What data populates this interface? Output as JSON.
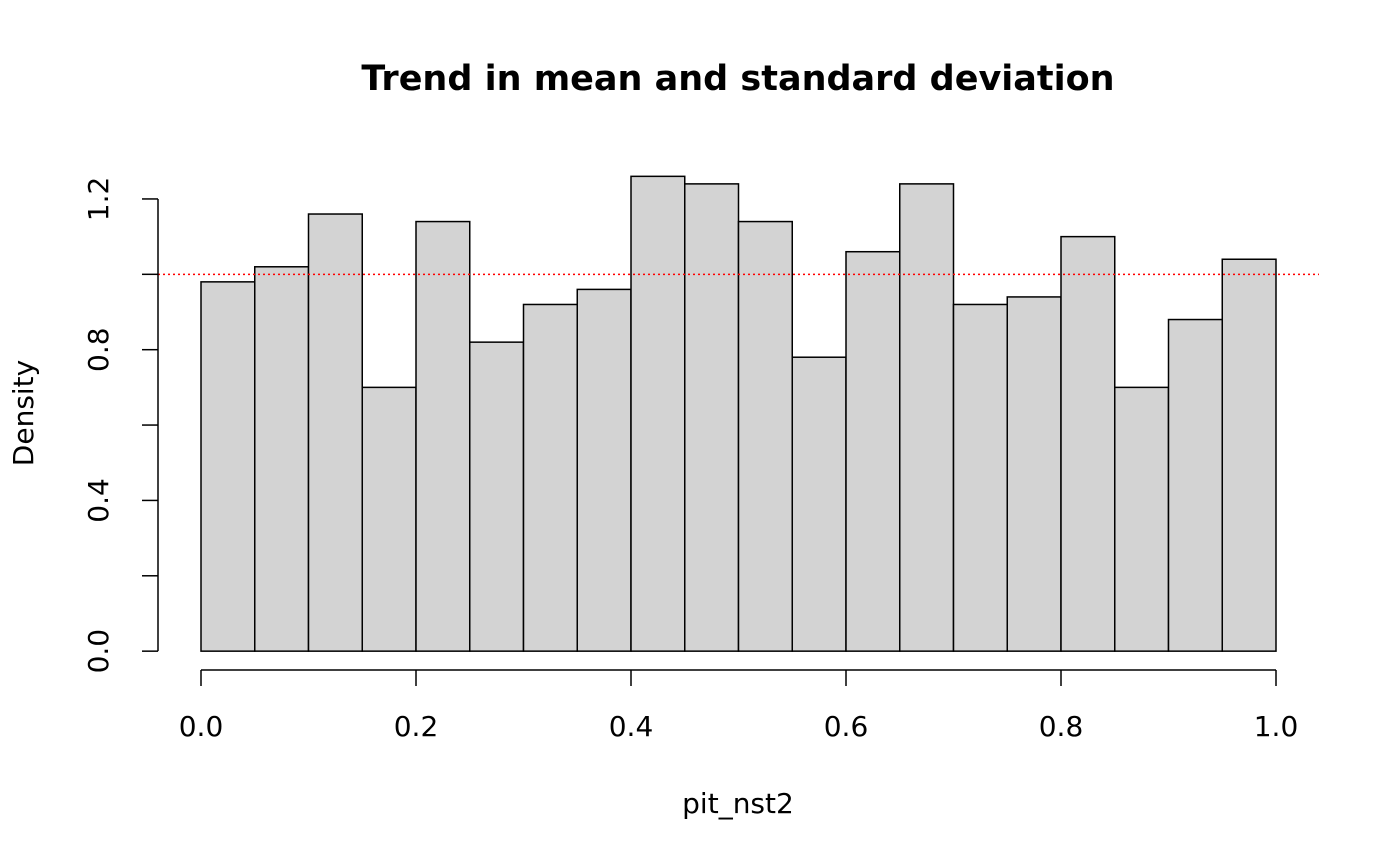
{
  "chart_data": {
    "type": "histogram",
    "title": "Trend in mean and standard deviation",
    "xlabel": "pit_nst2",
    "ylabel": "Density",
    "bins": [
      0,
      0.05,
      0.1,
      0.15,
      0.2,
      0.25,
      0.3,
      0.35,
      0.4,
      0.45,
      0.5,
      0.55,
      0.6,
      0.65,
      0.7,
      0.75,
      0.8,
      0.85,
      0.9,
      0.95,
      1
    ],
    "values": [
      0.98,
      1.02,
      1.16,
      0.7,
      1.14,
      0.82,
      0.92,
      0.96,
      1.26,
      1.24,
      1.14,
      0.78,
      1.06,
      1.24,
      0.92,
      0.94,
      1.1,
      0.7,
      0.88,
      1.04
    ],
    "color": "#d3d3d3",
    "xlim": [
      -0.04,
      1.04
    ],
    "ylim": [
      -0.05,
      1.31
    ],
    "xticks": [
      {
        "value": 0,
        "label": "0.0"
      },
      0.2,
      0.4,
      0.6,
      0.8,
      {
        "value": 1,
        "label": "1.0"
      }
    ],
    "yticks": [
      {
        "value": 0,
        "label": "0.0"
      },
      {
        "value": 0.2,
        "label": null
      },
      0.4,
      {
        "value": 0.6,
        "label": null
      },
      0.8,
      {
        "value": 1.0,
        "label": null
      },
      1.2
    ],
    "reference_line": {
      "value": 1,
      "color": "#ff0000"
    }
  }
}
